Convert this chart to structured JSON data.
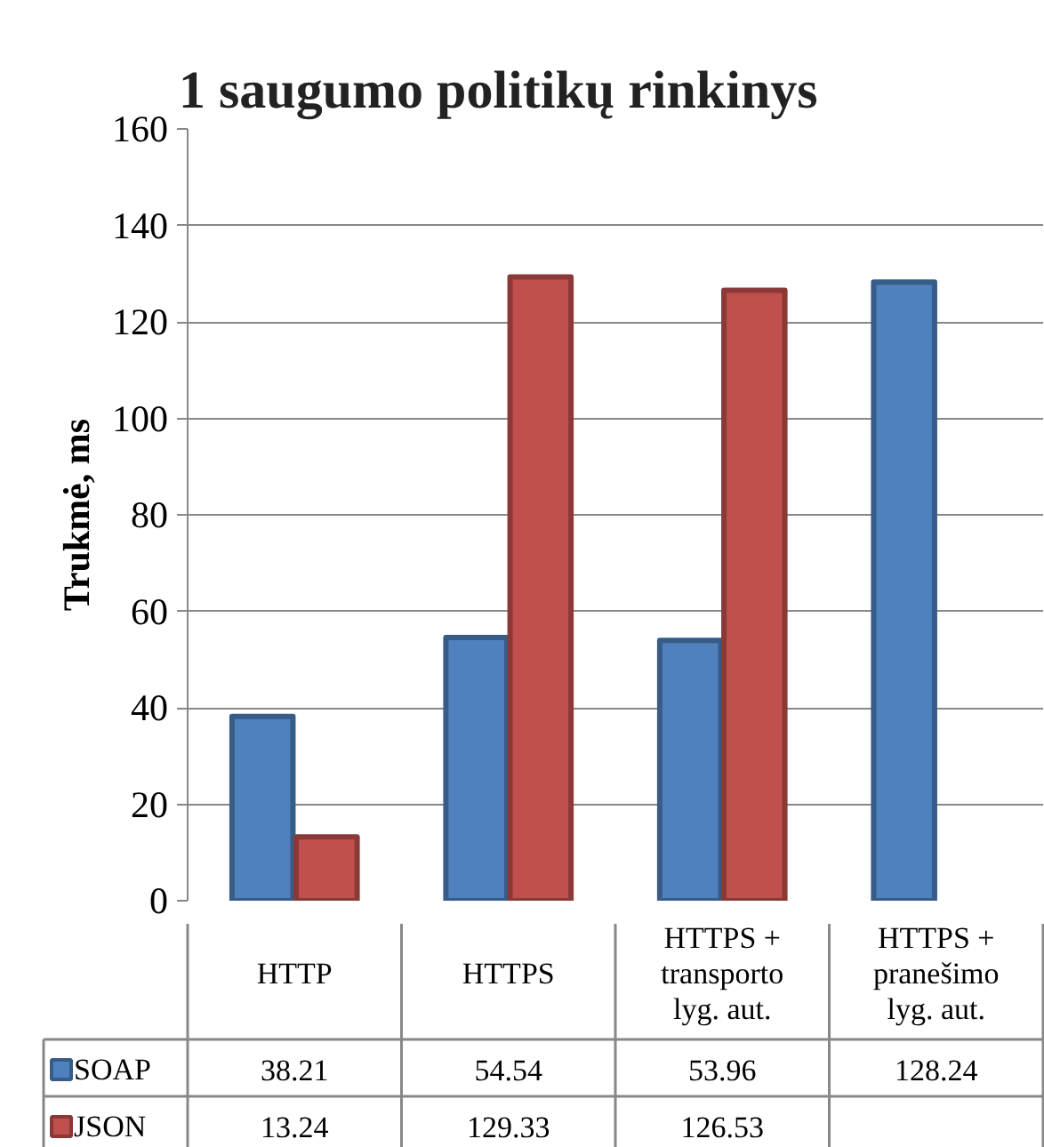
{
  "chart_data": {
    "type": "bar",
    "title": "1 saugumo politikų rinkinys",
    "ylabel": "Trukmė, ms",
    "categories": [
      "HTTP",
      "HTTPS",
      "HTTPS + transporto lyg. aut.",
      "HTTPS + pranešimo lyg. aut."
    ],
    "series": [
      {
        "name": "SOAP",
        "color": "#4f81bd",
        "values": [
          38.21,
          54.54,
          53.96,
          128.24
        ]
      },
      {
        "name": "JSON",
        "color": "#c0504d",
        "values": [
          13.24,
          129.33,
          126.53,
          null
        ]
      }
    ],
    "ylim": [
      0,
      160
    ],
    "yticks": [
      0,
      20,
      40,
      60,
      80,
      100,
      120,
      140,
      160
    ],
    "grid": "y",
    "legend": "bottom",
    "data_labels": true
  }
}
